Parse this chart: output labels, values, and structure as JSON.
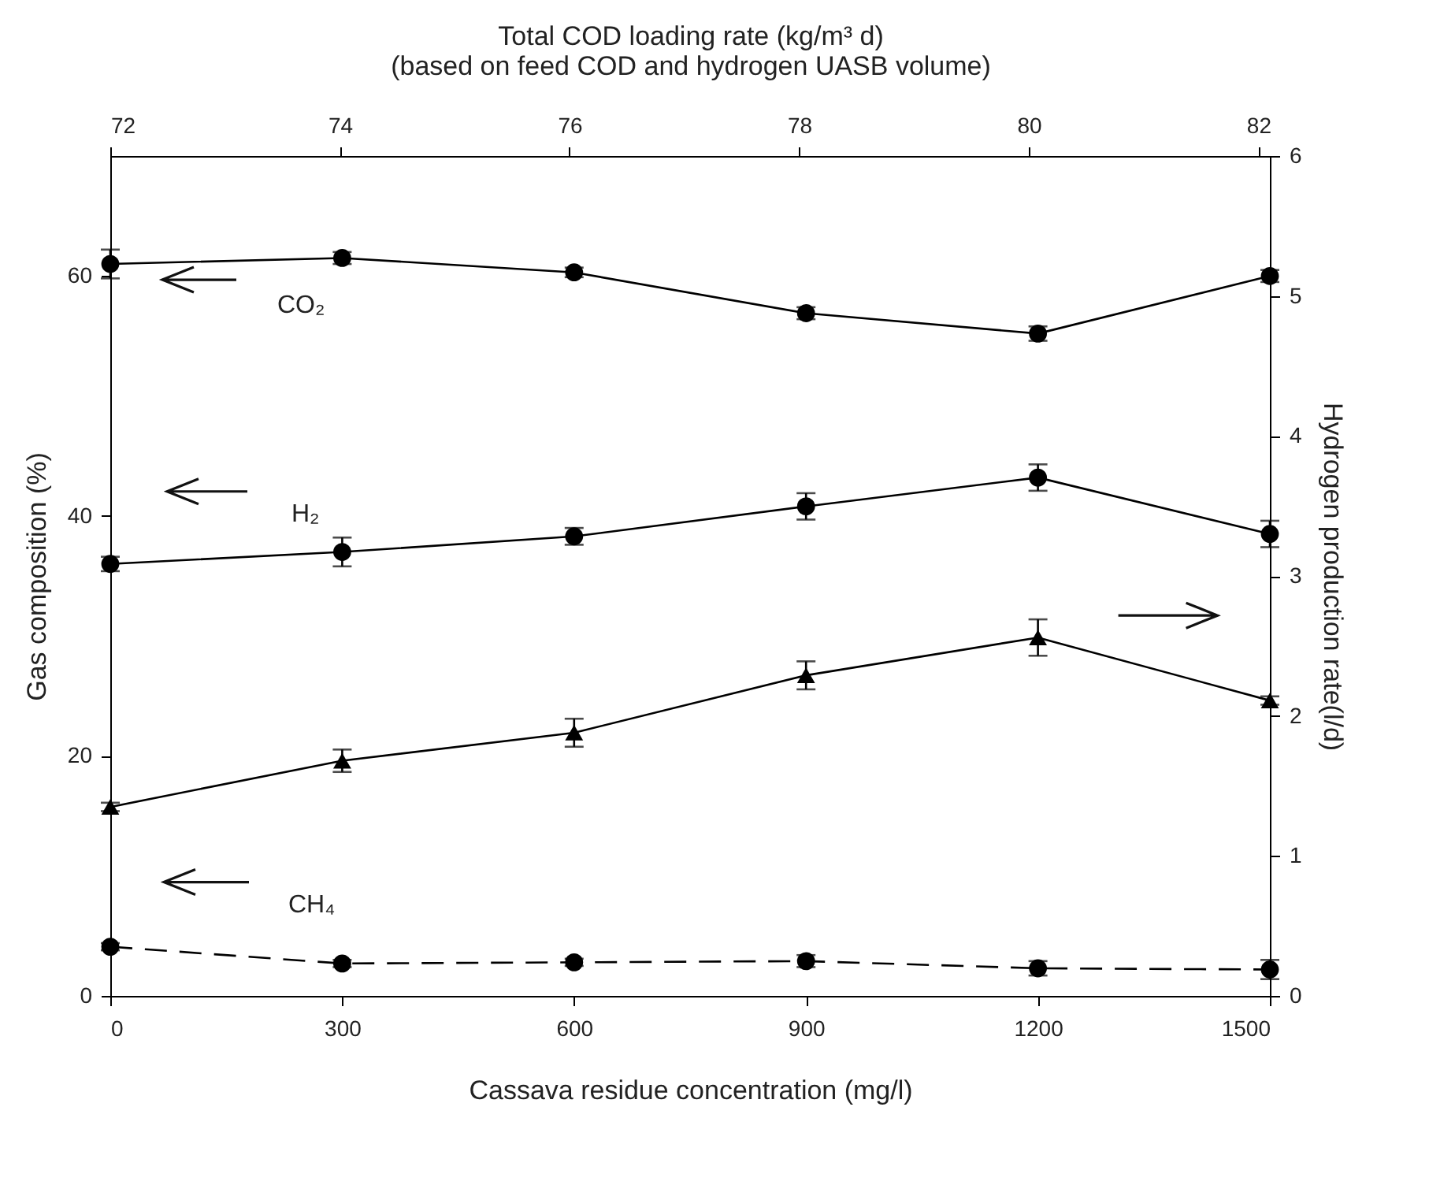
{
  "chart_data": {
    "type": "line",
    "xlabel": "Cassava residue concentration (mg/l)",
    "ylabel": "Gas composition (%)",
    "y2label": "Hydrogen production rate(l/d)",
    "x2label": "Total COD loading rate (kg/m³ d)\n(based on feed COD and hydrogen UASB volume)",
    "x": [
      0,
      300,
      600,
      900,
      1200,
      1500
    ],
    "xlim": [
      0,
      1500
    ],
    "xticks": [
      0,
      300,
      600,
      900,
      1200,
      1500
    ],
    "x2lim": [
      72,
      82.1
    ],
    "x2ticks": [
      72,
      74,
      76,
      78,
      80,
      82
    ],
    "ylim": [
      0,
      70
    ],
    "yticks": [
      0,
      20,
      40,
      60
    ],
    "y2lim": [
      0,
      6
    ],
    "y2ticks": [
      0,
      1,
      2,
      3,
      4,
      5,
      6
    ],
    "grid": false,
    "series": [
      {
        "name": "CO₂",
        "color": "#000000",
        "marker": "circle",
        "line_style": "solid",
        "values": [
          61.0,
          61.5,
          60.3,
          56.9,
          55.2,
          60.0
        ],
        "errors": [
          1.2,
          0.5,
          0.4,
          0.5,
          0.6,
          0.5
        ]
      },
      {
        "name": "H₂",
        "color": "#000000",
        "marker": "circle",
        "line_style": "solid",
        "values": [
          36.0,
          37.0,
          38.3,
          40.8,
          43.2,
          38.5
        ],
        "errors": [
          0.6,
          1.2,
          0.7,
          1.1,
          1.1,
          1.1
        ]
      },
      {
        "color": "#000000",
        "marker": "triangle",
        "line_style": "solid",
        "axis": "y2",
        "values": [
          1.35,
          1.68,
          1.88,
          2.29,
          2.56,
          2.11
        ],
        "errors": [
          0.03,
          0.08,
          0.1,
          0.1,
          0.13,
          0.03
        ]
      },
      {
        "name": "CH₄",
        "color": "#000000",
        "marker": "circle",
        "line_style": "dashed",
        "values": [
          4.1,
          2.7,
          2.8,
          2.9,
          2.3,
          2.2
        ],
        "errors": [
          0.3,
          0.3,
          0.3,
          0.5,
          0.6,
          0.8
        ]
      }
    ]
  }
}
